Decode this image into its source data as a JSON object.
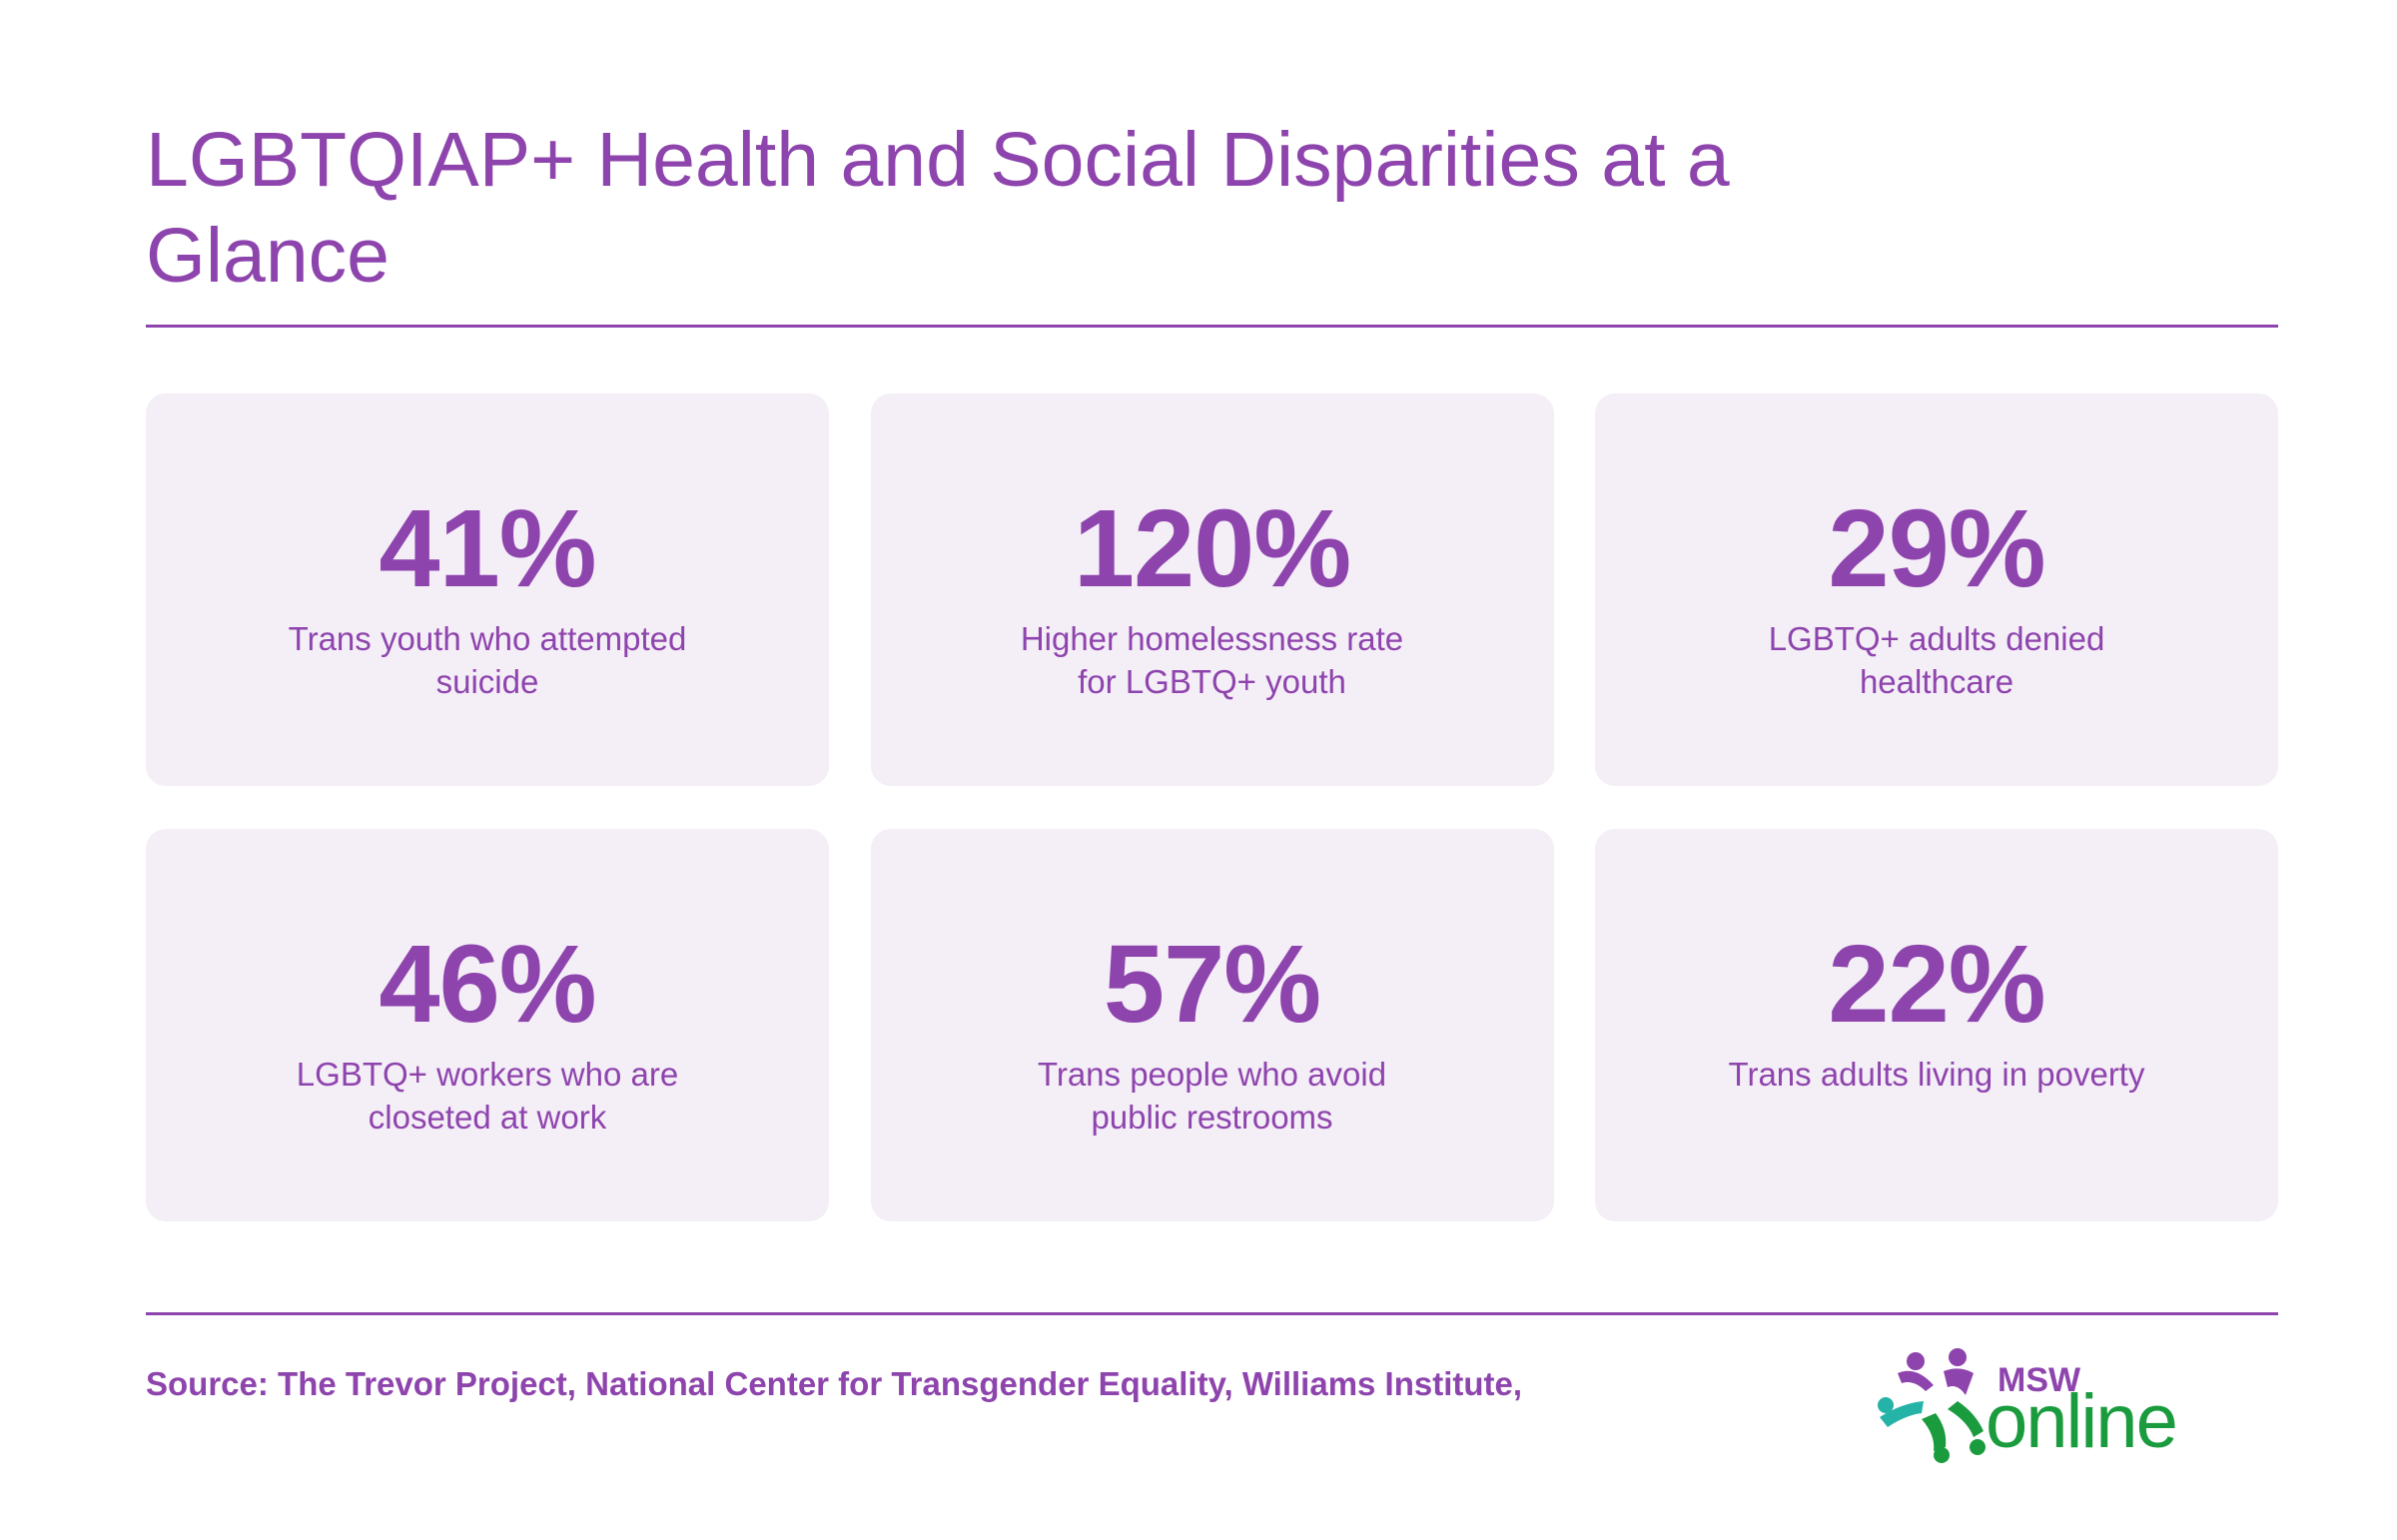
{
  "title": "LGBTQIAP+ Health and Social Disparities at a Glance",
  "stats": [
    {
      "value": "41%",
      "label": "Trans youth who attempted suicide"
    },
    {
      "value": "120%",
      "label": "Higher homelessness rate for LGBTQ+ youth"
    },
    {
      "value": "29%",
      "label": "LGBTQ+ adults denied healthcare"
    },
    {
      "value": "46%",
      "label": "LGBTQ+ workers who are closeted at work"
    },
    {
      "value": "57%",
      "label": "Trans people who avoid public restrooms"
    },
    {
      "value": "22%",
      "label": "Trans adults living in poverty"
    }
  ],
  "source": "Source: The Trevor Project, National Center for Transgender Equality, Williams Institute,",
  "logo": {
    "text_top": "MSW",
    "text_main": "online",
    "icon": "star-people-icon"
  },
  "colors": {
    "accent": "#8e44ad",
    "card_bg": "#f4eef7",
    "logo_green": "#1a9c3e",
    "logo_teal": "#25b3a8"
  }
}
